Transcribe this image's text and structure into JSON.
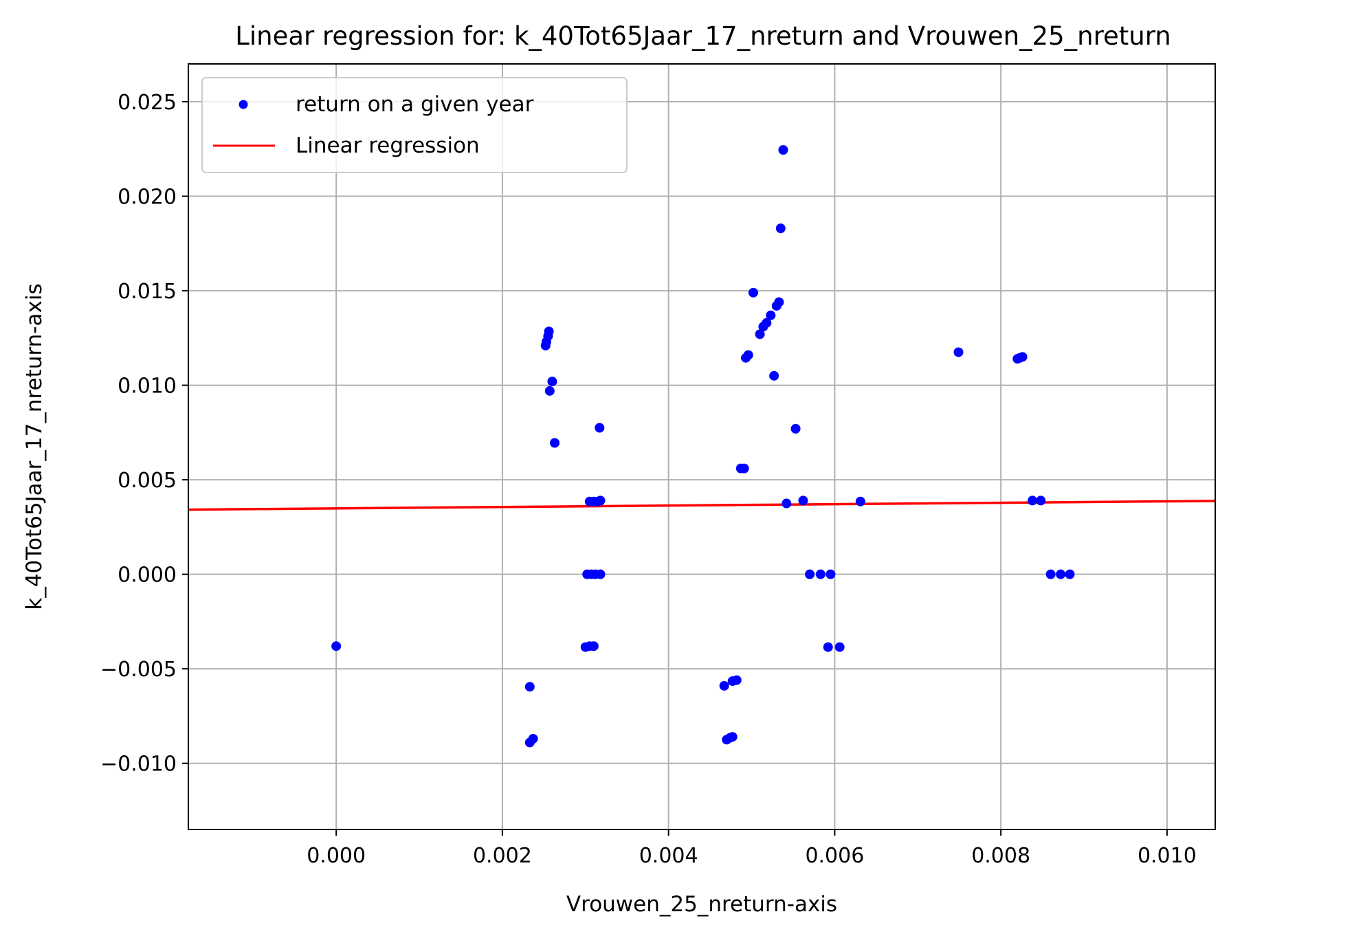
{
  "chart_data": {
    "type": "scatter",
    "title": "Linear regression for: k_40Tot65Jaar_17_nreturn and Vrouwen_25_nreturn",
    "xlabel": "Vrouwen_25_nreturn-axis",
    "ylabel": "k_40Tot65Jaar_17_nreturn-axis",
    "xlim": [
      -0.00178,
      0.01058
    ],
    "ylim": [
      -0.0135,
      0.027
    ],
    "xticks": [
      0.0,
      0.002,
      0.004,
      0.006,
      0.008,
      0.01
    ],
    "xtick_labels": [
      "0.000",
      "0.002",
      "0.004",
      "0.006",
      "0.008",
      "0.010"
    ],
    "yticks": [
      -0.01,
      -0.005,
      0.0,
      0.005,
      0.01,
      0.015,
      0.02,
      0.025
    ],
    "ytick_labels": [
      "−0.010",
      "−0.005",
      "0.000",
      "0.005",
      "0.010",
      "0.015",
      "0.020",
      "0.025"
    ],
    "grid": true,
    "legend_position": "top-left",
    "series": [
      {
        "name": "return on a given year",
        "kind": "scatter",
        "color": "#0000ff",
        "points": [
          [
            0.0,
            -0.0038
          ],
          [
            0.00233,
            -0.00595
          ],
          [
            0.00233,
            -0.0089
          ],
          [
            0.00237,
            -0.0087
          ],
          [
            0.00252,
            0.0121
          ],
          [
            0.00253,
            0.0123
          ],
          [
            0.00255,
            0.0126
          ],
          [
            0.00256,
            0.01285
          ],
          [
            0.00257,
            0.0097
          ],
          [
            0.0026,
            0.0102
          ],
          [
            0.00263,
            0.00695
          ],
          [
            0.003,
            -0.00385
          ],
          [
            0.00305,
            -0.0038
          ],
          [
            0.0031,
            -0.0038
          ],
          [
            0.00302,
            0.0
          ],
          [
            0.00307,
            0.0
          ],
          [
            0.00312,
            0.0
          ],
          [
            0.00318,
            0.0
          ],
          [
            0.00305,
            0.00385
          ],
          [
            0.0031,
            0.00385
          ],
          [
            0.00315,
            0.00385
          ],
          [
            0.00318,
            0.0039
          ],
          [
            0.00317,
            0.00775
          ],
          [
            0.00467,
            -0.0059
          ],
          [
            0.00477,
            -0.00565
          ],
          [
            0.00482,
            -0.0056
          ],
          [
            0.0047,
            -0.00875
          ],
          [
            0.00474,
            -0.00865
          ],
          [
            0.00477,
            -0.0086
          ],
          [
            0.00487,
            0.0056
          ],
          [
            0.00491,
            0.0056
          ],
          [
            0.00493,
            0.01145
          ],
          [
            0.00496,
            0.0116
          ],
          [
            0.00502,
            0.0149
          ],
          [
            0.0051,
            0.0127
          ],
          [
            0.00514,
            0.0131
          ],
          [
            0.00518,
            0.0133
          ],
          [
            0.00523,
            0.0137
          ],
          [
            0.00527,
            0.0105
          ],
          [
            0.0053,
            0.0142
          ],
          [
            0.00533,
            0.0144
          ],
          [
            0.00535,
            0.0183
          ],
          [
            0.00538,
            0.02245
          ],
          [
            0.00542,
            0.00375
          ],
          [
            0.00553,
            0.0077
          ],
          [
            0.00562,
            0.0039
          ],
          [
            0.0057,
            0.0
          ],
          [
            0.00583,
            0.0
          ],
          [
            0.00595,
            0.0
          ],
          [
            0.00592,
            -0.00385
          ],
          [
            0.00606,
            -0.00385
          ],
          [
            0.00631,
            0.00385
          ],
          [
            0.00749,
            0.01175
          ],
          [
            0.0082,
            0.0114
          ],
          [
            0.00823,
            0.01145
          ],
          [
            0.00826,
            0.0115
          ],
          [
            0.00838,
            0.0039
          ],
          [
            0.00848,
            0.0039
          ],
          [
            0.0086,
            0.0
          ],
          [
            0.00872,
            0.0
          ],
          [
            0.00883,
            0.0
          ]
        ]
      },
      {
        "name": "Linear regression",
        "kind": "line",
        "color": "#ff0000",
        "points": [
          [
            -0.00178,
            0.00342
          ],
          [
            0.01058,
            0.00388
          ]
        ]
      }
    ]
  }
}
